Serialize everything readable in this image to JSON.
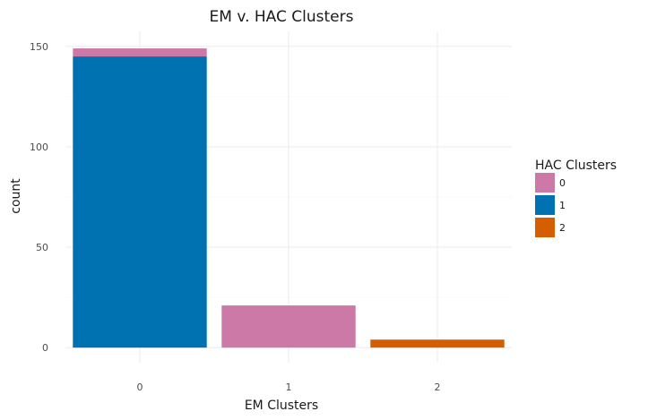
{
  "chart_data": {
    "type": "bar",
    "stacked": true,
    "title": "EM v. HAC Clusters",
    "xlabel": "EM Clusters",
    "ylabel": "count",
    "categories": [
      "0",
      "1",
      "2"
    ],
    "series": [
      {
        "name": "0",
        "color": "#CC79A7",
        "values": [
          4,
          21,
          0
        ]
      },
      {
        "name": "1",
        "color": "#0072B2",
        "values": [
          145,
          0,
          0
        ]
      },
      {
        "name": "2",
        "color": "#D55E00",
        "values": [
          0,
          0,
          4
        ]
      }
    ],
    "yticks": [
      0,
      50,
      100,
      150
    ],
    "ylim": [
      -7.5,
      157.5
    ],
    "grid": true,
    "legend": {
      "title": "HAC Clusters",
      "position": "right"
    }
  }
}
